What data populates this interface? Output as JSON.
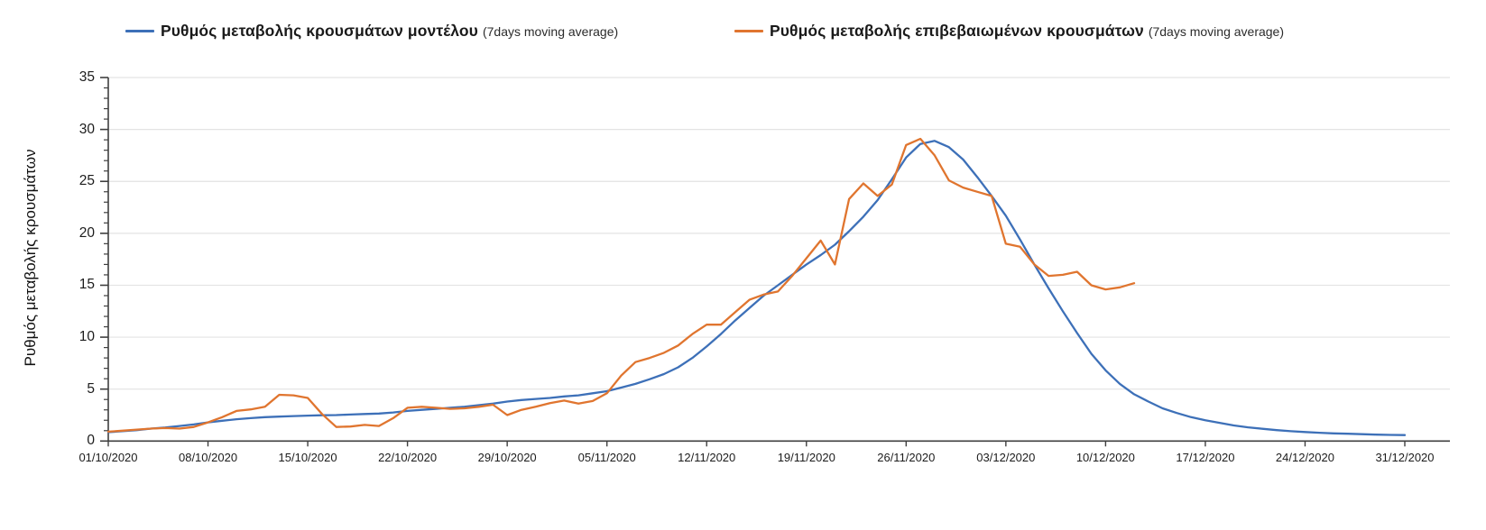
{
  "legend": {
    "items": [
      {
        "label": "Ρυθμός μεταβολής κρουσμάτων μοντέλου",
        "suffix": "(7days moving average)",
        "color": "#3d70b8"
      },
      {
        "label": "Ρυθμός μεταβολής επιβεβαιωμένων κρουσμάτων",
        "suffix": "(7days moving average)",
        "color": "#e0752f"
      }
    ]
  },
  "chart_data": {
    "type": "line",
    "title": "",
    "xlabel": "",
    "ylabel": "Ρυθμός μεταβολής κρουσμάτων",
    "ylim": [
      0,
      35
    ],
    "y_ticks": [
      0,
      5,
      10,
      15,
      20,
      25,
      30,
      35
    ],
    "grid": "horizontal",
    "legend_position": "top",
    "x_tick_labels": [
      "01/10/2020",
      "08/10/2020",
      "15/10/2020",
      "22/10/2020",
      "29/10/2020",
      "05/11/2020",
      "12/11/2020",
      "19/11/2020",
      "26/11/2020",
      "03/12/2020",
      "10/12/2020",
      "17/12/2020",
      "24/12/2020",
      "31/12/2020"
    ],
    "x_tick_days": [
      1,
      8,
      15,
      22,
      29,
      36,
      43,
      50,
      57,
      64,
      71,
      78,
      85,
      92
    ],
    "x_range_days": [
      1,
      92
    ],
    "series": [
      {
        "name": "Ρυθμός μεταβολής κρουσμάτων μοντέλου (7days moving average)",
        "color": "#3d70b8",
        "start_day": 1,
        "values": [
          0.85,
          0.95,
          1.05,
          1.2,
          1.3,
          1.45,
          1.6,
          1.8,
          1.95,
          2.1,
          2.2,
          2.3,
          2.35,
          2.4,
          2.45,
          2.48,
          2.5,
          2.55,
          2.6,
          2.65,
          2.75,
          2.9,
          3.0,
          3.1,
          3.2,
          3.3,
          3.45,
          3.6,
          3.8,
          3.95,
          4.05,
          4.15,
          4.3,
          4.4,
          4.6,
          4.8,
          5.15,
          5.5,
          5.95,
          6.45,
          7.1,
          8.0,
          9.1,
          10.3,
          11.6,
          12.8,
          14.0,
          15.0,
          16.0,
          17.0,
          17.9,
          18.9,
          20.2,
          21.6,
          23.2,
          25.2,
          27.3,
          28.6,
          28.9,
          28.3,
          27.1,
          25.4,
          23.6,
          21.7,
          19.4,
          17.0,
          14.7,
          12.5,
          10.4,
          8.4,
          6.8,
          5.5,
          4.5,
          3.8,
          3.15,
          2.7,
          2.3,
          2.0,
          1.75,
          1.5,
          1.32,
          1.18,
          1.05,
          0.95,
          0.87,
          0.8,
          0.74,
          0.7,
          0.66,
          0.62,
          0.59,
          0.57
        ]
      },
      {
        "name": "Ρυθμός μεταβολής επιβεβαιωμένων κρουσμάτων (7days moving average)",
        "color": "#e0752f",
        "start_day": 1,
        "values": [
          0.9,
          1.0,
          1.1,
          1.2,
          1.25,
          1.2,
          1.35,
          1.8,
          2.3,
          2.9,
          3.05,
          3.3,
          4.45,
          4.4,
          4.15,
          2.6,
          1.35,
          1.4,
          1.55,
          1.45,
          2.2,
          3.2,
          3.3,
          3.2,
          3.1,
          3.15,
          3.3,
          3.5,
          2.5,
          3.0,
          3.3,
          3.65,
          3.9,
          3.6,
          3.85,
          4.6,
          6.3,
          7.6,
          8.0,
          8.5,
          9.2,
          10.3,
          11.2,
          11.2,
          12.4,
          13.6,
          14.1,
          14.4,
          15.9,
          17.6,
          19.3,
          17.0,
          23.3,
          24.8,
          23.6,
          24.7,
          28.5,
          29.1,
          27.5,
          25.1,
          24.4,
          24.0,
          23.6,
          19.0,
          18.7,
          17.0,
          15.9,
          16.0,
          16.3,
          15.0,
          14.6,
          14.8,
          15.2
        ]
      }
    ]
  }
}
